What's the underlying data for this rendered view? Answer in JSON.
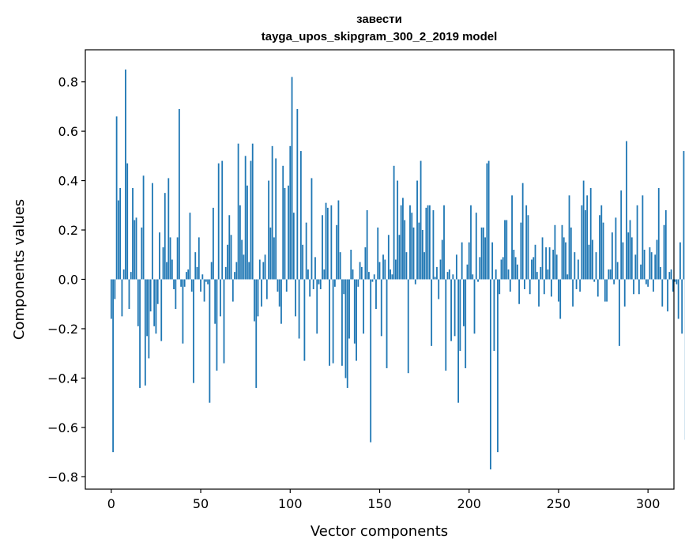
{
  "chart_data": {
    "type": "bar",
    "title_line1": "завести",
    "title_line2": "tayga_upos_skipgram_300_2_2019 model",
    "xlabel": "Vector components",
    "ylabel": "Components values",
    "xlim": [
      -14.5,
      314.5
    ],
    "ylim": [
      -0.85,
      0.93
    ],
    "xticks": [
      0,
      50,
      100,
      150,
      200,
      250,
      300
    ],
    "yticks": [
      -0.8,
      -0.6,
      -0.4,
      -0.2,
      0.0,
      0.2,
      0.4,
      0.6,
      0.8
    ],
    "ytick_labels": [
      "−0.8",
      "−0.6",
      "−0.4",
      "−0.2",
      "0.0",
      "0.2",
      "0.4",
      "0.6",
      "0.8"
    ],
    "bar_color": "#1f77b4",
    "values": [
      -0.16,
      -0.7,
      -0.08,
      0.66,
      0.32,
      0.37,
      -0.15,
      0.04,
      0.85,
      0.47,
      -0.12,
      0.03,
      0.37,
      0.24,
      0.25,
      -0.19,
      -0.44,
      0.21,
      0.42,
      -0.43,
      -0.23,
      -0.32,
      -0.13,
      0.39,
      -0.19,
      -0.22,
      -0.1,
      0.19,
      -0.25,
      0.13,
      0.35,
      0.07,
      0.41,
      0.17,
      0.08,
      -0.04,
      -0.12,
      0.17,
      0.69,
      -0.03,
      -0.26,
      -0.03,
      0.03,
      0.04,
      0.27,
      -0.05,
      -0.42,
      0.11,
      0.05,
      0.17,
      -0.05,
      0.02,
      -0.09,
      -0.01,
      -0.02,
      -0.5,
      0.07,
      0.29,
      -0.18,
      -0.37,
      0.47,
      -0.15,
      0.48,
      -0.34,
      0.05,
      0.14,
      0.26,
      0.18,
      -0.09,
      0.03,
      0.07,
      0.55,
      0.3,
      0.16,
      0.1,
      0.5,
      0.38,
      0.07,
      0.48,
      0.55,
      -0.17,
      -0.44,
      -0.15,
      0.08,
      -0.11,
      0.07,
      0.1,
      -0.08,
      0.4,
      0.21,
      0.54,
      0.17,
      0.49,
      -0.05,
      -0.11,
      -0.18,
      0.46,
      0.37,
      -0.05,
      0.38,
      0.54,
      0.82,
      0.27,
      -0.15,
      0.69,
      -0.24,
      0.52,
      0.14,
      -0.33,
      0.23,
      0.04,
      -0.07,
      0.41,
      -0.04,
      0.09,
      -0.22,
      -0.02,
      -0.04,
      0.26,
      0.04,
      0.31,
      0.29,
      -0.35,
      0.3,
      -0.34,
      -0.03,
      0.22,
      0.32,
      0.11,
      -0.35,
      -0.06,
      -0.4,
      -0.44,
      -0.24,
      0.12,
      0.04,
      -0.26,
      -0.33,
      -0.03,
      0.07,
      0.05,
      -0.22,
      0.13,
      0.28,
      0.03,
      -0.66,
      -0.01,
      0.02,
      -0.12,
      0.21,
      0.07,
      -0.23,
      0.1,
      0.08,
      -0.36,
      0.18,
      0.04,
      0.02,
      0.46,
      0.08,
      0.4,
      0.18,
      0.3,
      0.33,
      0.24,
      0.11,
      -0.38,
      0.3,
      0.27,
      0.21,
      -0.02,
      0.4,
      0.23,
      0.48,
      0.2,
      0.11,
      0.29,
      0.3,
      0.3,
      -0.27,
      0.28,
      0.01,
      0.05,
      -0.08,
      0.08,
      0.16,
      0.3,
      -0.37,
      0.03,
      0.04,
      -0.25,
      0.02,
      -0.23,
      0.1,
      -0.5,
      -0.29,
      0.15,
      -0.19,
      -0.36,
      0.06,
      0.15,
      0.3,
      0.02,
      -0.22,
      0.27,
      -0.01,
      0.09,
      0.21,
      0.21,
      0.17,
      0.47,
      0.48,
      -0.77,
      0.15,
      -0.29,
      0.04,
      -0.7,
      -0.06,
      0.08,
      0.09,
      0.24,
      0.24,
      0.04,
      -0.05,
      0.34,
      0.12,
      0.09,
      0.06,
      -0.1,
      0.23,
      0.39,
      -0.04,
      0.3,
      0.26,
      -0.06,
      0.08,
      0.09,
      0.14,
      0.03,
      -0.11,
      0.05,
      0.17,
      -0.06,
      0.13,
      0.04,
      0.13,
      -0.07,
      0.12,
      0.22,
      0.1,
      -0.09,
      -0.16,
      0.22,
      0.17,
      0.15,
      0.02,
      0.34,
      0.21,
      -0.11,
      0.11,
      -0.04,
      0.08,
      -0.05,
      0.3,
      0.4,
      0.28,
      0.34,
      0.14,
      0.37,
      0.16,
      -0.01,
      0.11,
      -0.07,
      0.26,
      0.3,
      0.23,
      -0.09,
      -0.09,
      0.04,
      0.04,
      0.19,
      -0.02,
      0.25,
      0.07,
      -0.27,
      0.36,
      0.15,
      -0.11,
      0.56,
      0.19,
      0.24,
      0.17,
      -0.06,
      0.1,
      0.3,
      -0.06,
      0.06,
      0.34,
      0.12,
      -0.02,
      -0.03,
      0.13,
      0.11,
      -0.05,
      0.1,
      0.16,
      0.37,
      0.05,
      -0.11,
      0.22,
      0.28,
      -0.13,
      0.03,
      0.04,
      -0.05,
      -0.01,
      -0.02,
      -0.16,
      0.15,
      -0.22,
      0.52,
      -0.65
    ]
  }
}
